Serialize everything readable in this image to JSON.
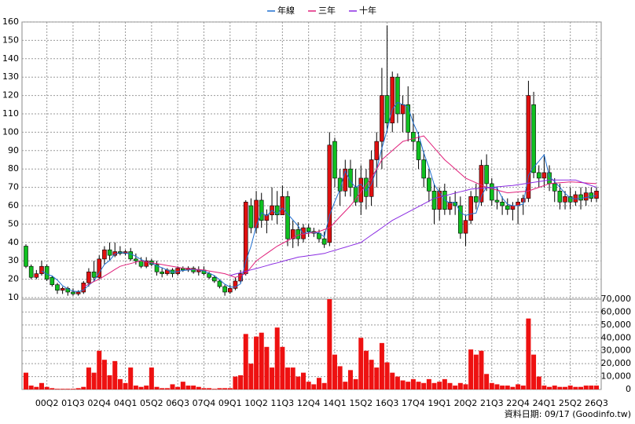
{
  "chart_data": {
    "type": "candlestick",
    "legend": [
      {
        "name": "年線",
        "color": "#1f6fd0"
      },
      {
        "name": "三年",
        "color": "#e0207a"
      },
      {
        "name": "十年",
        "color": "#8a2be2"
      }
    ],
    "footer": "資料日期: 09/17  (Goodinfo.tw)",
    "categories": [
      null,
      null,
      null,
      null,
      "00Q2",
      null,
      null,
      null,
      null,
      "01Q3",
      null,
      null,
      null,
      null,
      "02Q4",
      null,
      null,
      null,
      null,
      "04Q1",
      null,
      null,
      null,
      null,
      "05Q2",
      null,
      null,
      null,
      null,
      "06Q3",
      null,
      null,
      null,
      null,
      "07Q4",
      null,
      null,
      null,
      null,
      "09Q1",
      null,
      null,
      null,
      null,
      "10Q2",
      null,
      null,
      null,
      null,
      "11Q3",
      null,
      null,
      null,
      null,
      "12Q4",
      null,
      null,
      null,
      null,
      "14Q1",
      null,
      null,
      null,
      null,
      "15Q2",
      null,
      null,
      null,
      null,
      "16Q3",
      null,
      null,
      null,
      null,
      "17Q4",
      null,
      null,
      null,
      null,
      "19Q1",
      null,
      null,
      null,
      null,
      "20Q2",
      null,
      null,
      null,
      null,
      "21Q3",
      null,
      null,
      null,
      null,
      "22Q4",
      null,
      null,
      null,
      null,
      "24Q1",
      null,
      null,
      null,
      null,
      "25Q2",
      null,
      null,
      null,
      null,
      "26Q3"
    ],
    "open": [
      38,
      27,
      21,
      23,
      27,
      21,
      17,
      14,
      15,
      13,
      12,
      13,
      18,
      24,
      21,
      31,
      36,
      33,
      35,
      34,
      35,
      31,
      30,
      27,
      30,
      28,
      24,
      23,
      25,
      23,
      26,
      25,
      26,
      24,
      25,
      23,
      21,
      19,
      16,
      13,
      15,
      19,
      23,
      60,
      48,
      63,
      52,
      55,
      60,
      55,
      65,
      42,
      47,
      42,
      48,
      46,
      45,
      42,
      40,
      95,
      75,
      68,
      80,
      70,
      62,
      75,
      65,
      85,
      95,
      120,
      105,
      130,
      110,
      115,
      100,
      95,
      85,
      75,
      68,
      58,
      68,
      58,
      62,
      60,
      45,
      52,
      65,
      62,
      82,
      72,
      63,
      62,
      60,
      58,
      60,
      62,
      64,
      115,
      78,
      75,
      78,
      72,
      68,
      62,
      65,
      62,
      66,
      63,
      67,
      64
    ],
    "high": [
      39,
      28,
      25,
      30,
      28,
      22,
      18,
      16,
      16,
      15,
      14,
      19,
      26,
      30,
      33,
      38,
      40,
      40,
      38,
      36,
      37,
      34,
      32,
      32,
      31,
      30,
      26,
      26,
      26,
      27,
      27,
      27,
      27,
      27,
      27,
      24,
      22,
      20,
      17,
      17,
      21,
      25,
      63,
      64,
      68,
      67,
      58,
      70,
      68,
      71,
      68,
      52,
      51,
      50,
      50,
      48,
      47,
      46,
      100,
      97,
      80,
      85,
      85,
      80,
      82,
      80,
      90,
      100,
      135,
      158,
      133,
      132,
      120,
      125,
      110,
      100,
      90,
      80,
      72,
      70,
      72,
      65,
      68,
      65,
      55,
      68,
      72,
      85,
      88,
      75,
      70,
      65,
      64,
      62,
      64,
      66,
      128,
      122,
      82,
      88,
      82,
      75,
      72,
      68,
      70,
      68,
      70,
      70,
      70,
      70
    ],
    "low": [
      26,
      20,
      20,
      22,
      19,
      16,
      12,
      12,
      11,
      11,
      11,
      12,
      16,
      19,
      20,
      28,
      30,
      32,
      33,
      33,
      30,
      28,
      26,
      26,
      27,
      22,
      21,
      22,
      21,
      22,
      24,
      24,
      23,
      22,
      22,
      20,
      18,
      15,
      11,
      12,
      14,
      18,
      22,
      45,
      45,
      48,
      45,
      52,
      50,
      55,
      38,
      37,
      38,
      40,
      43,
      43,
      40,
      37,
      38,
      70,
      60,
      65,
      65,
      60,
      55,
      58,
      60,
      70,
      80,
      100,
      100,
      105,
      100,
      95,
      90,
      80,
      70,
      62,
      50,
      52,
      55,
      55,
      55,
      42,
      38,
      50,
      58,
      60,
      68,
      60,
      58,
      55,
      55,
      52,
      50,
      55,
      62,
      75,
      70,
      70,
      68,
      62,
      58,
      58,
      58,
      60,
      58,
      60,
      62,
      62
    ],
    "close": [
      27,
      21,
      23,
      27,
      20,
      17,
      14,
      15,
      13,
      12,
      13,
      18,
      24,
      21,
      31,
      36,
      33,
      35,
      34,
      35,
      31,
      30,
      27,
      30,
      28,
      24,
      23,
      25,
      23,
      26,
      25,
      26,
      24,
      25,
      23,
      21,
      19,
      16,
      13,
      15,
      19,
      23,
      62,
      48,
      63,
      52,
      55,
      60,
      55,
      65,
      42,
      47,
      42,
      48,
      46,
      45,
      42,
      39,
      93,
      75,
      68,
      80,
      70,
      62,
      75,
      65,
      85,
      95,
      120,
      105,
      130,
      110,
      115,
      100,
      95,
      85,
      75,
      68,
      58,
      68,
      58,
      62,
      60,
      45,
      52,
      65,
      62,
      82,
      72,
      63,
      62,
      60,
      58,
      60,
      62,
      64,
      120,
      78,
      75,
      78,
      72,
      68,
      62,
      65,
      62,
      66,
      63,
      67,
      64,
      68
    ],
    "volume": [
      13000,
      3000,
      2000,
      5000,
      2000,
      1000,
      500,
      500,
      500,
      500,
      1000,
      2000,
      17000,
      13000,
      30000,
      23000,
      11000,
      22000,
      8000,
      5000,
      17000,
      3000,
      2000,
      3000,
      17000,
      2000,
      1000,
      1000,
      4000,
      2000,
      6000,
      3000,
      3000,
      2000,
      1000,
      1000,
      500,
      1000,
      1000,
      1000,
      10000,
      11000,
      43000,
      20000,
      41000,
      44000,
      33000,
      17000,
      48000,
      33000,
      17000,
      17000,
      10000,
      13000,
      6000,
      4000,
      9000,
      5000,
      70000,
      27000,
      18000,
      6000,
      15000,
      8000,
      40000,
      30000,
      23000,
      17000,
      36000,
      21000,
      13000,
      10000,
      7000,
      6000,
      8000,
      6000,
      5000,
      8000,
      5000,
      6000,
      8000,
      5000,
      3000,
      5000,
      4000,
      31000,
      27000,
      30000,
      12000,
      5000,
      4000,
      3000,
      3000,
      2000,
      4000,
      3000,
      55000,
      27000,
      10000,
      3000,
      2000,
      3000,
      2000,
      2000,
      3000,
      2000,
      2000,
      3000,
      3000,
      3000
    ],
    "series": [
      {
        "name": "年線",
        "color": "#1f6fd0",
        "values": [
          null,
          null,
          null,
          24.5,
          22.75,
          21.75,
          19.5,
          16.5,
          14.75,
          13.5,
          13.25,
          14,
          16.75,
          19,
          23.5,
          28,
          30.25,
          33.75,
          34.5,
          34.25,
          33.75,
          32.5,
          30.75,
          29.5,
          28.75,
          27.25,
          26.25,
          25,
          23.75,
          24.25,
          24.75,
          25,
          25.25,
          25,
          24.5,
          23.25,
          22,
          19.75,
          17.25,
          15.75,
          15.75,
          17.5,
          29.75,
          38,
          49,
          56.25,
          54.5,
          57.5,
          55.5,
          58.75,
          55.5,
          52.25,
          49,
          44.75,
          45.75,
          45.25,
          45.25,
          43,
          54.75,
          62.25,
          68.75,
          79,
          73.25,
          70,
          71.75,
          68,
          71.75,
          80,
          91.25,
          101.25,
          112.5,
          116.25,
          115,
          113.75,
          105,
          98.75,
          88.75,
          80.75,
          71.5,
          67.25,
          63,
          61.5,
          62,
          56.25,
          54.75,
          55.5,
          56,
          65.25,
          70.25,
          69.75,
          69.75,
          64.25,
          60.75,
          60,
          60,
          61,
          76.5,
          81,
          84.25,
          87.75,
          75.75,
          73.25,
          70,
          66.75,
          64.25,
          63.75,
          64,
          64.5,
          65,
          65.5
        ]
      },
      {
        "name": "三年",
        "color": "#e0207a",
        "values": [
          null,
          null,
          null,
          null,
          null,
          null,
          null,
          null,
          null,
          null,
          null,
          16,
          17.3,
          18.7,
          20,
          21.8,
          23.5,
          25.3,
          27,
          27.8,
          28.5,
          29.3,
          30,
          29.5,
          29,
          28.5,
          28,
          27.5,
          27,
          26.5,
          26,
          25.8,
          25.5,
          25.3,
          25,
          24.5,
          24,
          23.5,
          23,
          22,
          21,
          22,
          23,
          26.5,
          30,
          32,
          34,
          36,
          38,
          39.5,
          41,
          42.5,
          44,
          44.5,
          45,
          45.5,
          46,
          47,
          48,
          51,
          54,
          57,
          60,
          63.75,
          67.5,
          71.25,
          75,
          80,
          85,
          87.5,
          90,
          92.5,
          95,
          95.75,
          96.5,
          97.25,
          98,
          94.75,
          91.5,
          88.25,
          85,
          82.5,
          80,
          77.5,
          75,
          73.75,
          72.5,
          71.25,
          70,
          69.25,
          68.5,
          67.75,
          67,
          67.25,
          67.5,
          67.75,
          68,
          69,
          70,
          71,
          72,
          72.25,
          72.5,
          72.75,
          73,
          72.8,
          72.6,
          72.4,
          72.2,
          72
        ]
      },
      {
        "name": "十年",
        "color": "#8a2be2",
        "values": [
          null,
          null,
          null,
          null,
          null,
          null,
          null,
          null,
          null,
          null,
          null,
          null,
          null,
          null,
          null,
          null,
          null,
          null,
          null,
          null,
          null,
          null,
          null,
          null,
          null,
          null,
          null,
          null,
          null,
          null,
          null,
          null,
          null,
          null,
          null,
          null,
          null,
          null,
          null,
          22,
          22.8,
          23.5,
          24.3,
          25.1,
          25.8,
          26.6,
          27.4,
          28.2,
          28.9,
          29.7,
          30.5,
          31.2,
          32,
          32.4,
          32.8,
          33.2,
          33.6,
          34,
          34.9,
          35.7,
          36.6,
          37.4,
          38.3,
          39.1,
          40,
          42,
          44,
          46,
          48,
          50,
          52,
          53.5,
          55,
          56.5,
          58,
          59.5,
          61,
          62.5,
          64,
          64.7,
          65.4,
          66.1,
          66.9,
          67.6,
          68.3,
          69,
          69.3,
          69.5,
          69.8,
          70,
          70.3,
          70.5,
          70.8,
          71,
          71.4,
          71.9,
          72.3,
          72.7,
          73.1,
          73.6,
          74,
          74,
          74,
          74,
          74,
          74,
          73,
          72,
          71,
          70
        ]
      }
    ],
    "up_color": "#e01010",
    "down_color": "#10c020",
    "volume_color": "#ee1111",
    "ylim": [
      10,
      160
    ],
    "yticks": [
      10,
      20,
      30,
      40,
      50,
      60,
      70,
      80,
      90,
      100,
      110,
      120,
      130,
      140,
      150,
      160
    ],
    "y2lim": [
      0,
      70000
    ],
    "y2ticks": [
      0,
      {
        "value": 10000,
        "label": "10,000"
      },
      {
        "value": 20000,
        "label": "20,000"
      },
      {
        "value": 30000,
        "label": "30,000"
      },
      {
        "value": 40000,
        "label": "40,000"
      },
      {
        "value": 50000,
        "label": "50,000"
      },
      {
        "value": 60000,
        "label": "60,000"
      },
      {
        "value": 70000,
        "label": "70,000"
      }
    ],
    "grid": true
  }
}
